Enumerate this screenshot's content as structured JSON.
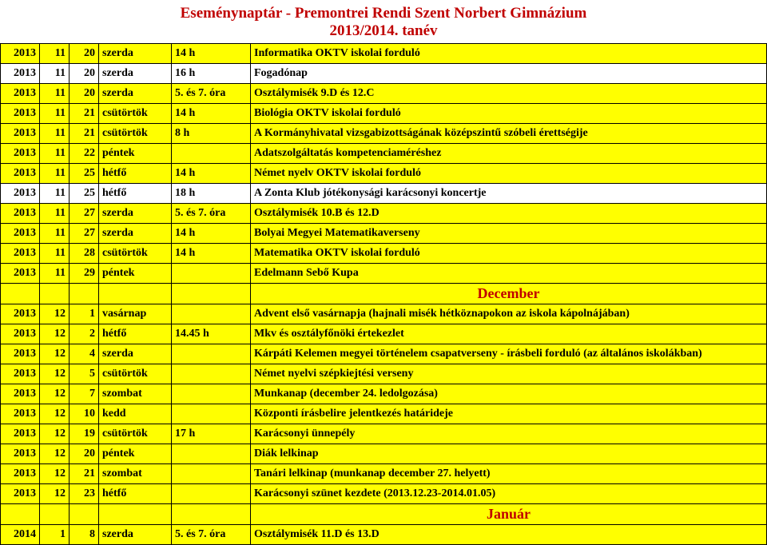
{
  "header": {
    "title": "Eseménynaptár - Premontrei Rendi Szent Norbert Gimnázium",
    "subtitle": "2013/2014. tanév"
  },
  "colors": {
    "title_color": "#c00000",
    "highlight_bg": "#ffff00",
    "normal_bg": "#ffffff",
    "border": "#000000"
  },
  "rows": [
    {
      "type": "data",
      "hl": true,
      "year": "2013",
      "month": "11",
      "day": "20",
      "dow": "szerda",
      "time": "14 h",
      "event": "Informatika OKTV iskolai forduló"
    },
    {
      "type": "data",
      "hl": false,
      "year": "2013",
      "month": "11",
      "day": "20",
      "dow": "szerda",
      "time": "16 h",
      "event": "Fogadónap"
    },
    {
      "type": "data",
      "hl": true,
      "year": "2013",
      "month": "11",
      "day": "20",
      "dow": "szerda",
      "time": "5. és 7. óra",
      "event": "Osztálymisék 9.D és 12.C"
    },
    {
      "type": "data",
      "hl": true,
      "year": "2013",
      "month": "11",
      "day": "21",
      "dow": "csütörtök",
      "time": "14 h",
      "event": "Biológia OKTV iskolai forduló"
    },
    {
      "type": "data",
      "hl": true,
      "year": "2013",
      "month": "11",
      "day": "21",
      "dow": "csütörtök",
      "time": "8 h",
      "event": "A Kormányhivatal vizsgabizottságának középszintű szóbeli érettségije"
    },
    {
      "type": "data",
      "hl": true,
      "year": "2013",
      "month": "11",
      "day": "22",
      "dow": "péntek",
      "time": "",
      "event": "Adatszolgáltatás kompetenciaméréshez"
    },
    {
      "type": "data",
      "hl": true,
      "year": "2013",
      "month": "11",
      "day": "25",
      "dow": "hétfő",
      "time": "14 h",
      "event": "Német nyelv OKTV iskolai forduló"
    },
    {
      "type": "data",
      "hl": false,
      "year": "2013",
      "month": "11",
      "day": "25",
      "dow": "hétfő",
      "time": "18 h",
      "event": "A Zonta Klub jótékonysági karácsonyi koncertje"
    },
    {
      "type": "data",
      "hl": true,
      "year": "2013",
      "month": "11",
      "day": "27",
      "dow": "szerda",
      "time": "5. és 7. óra",
      "event": "Osztálymisék 10.B és 12.D"
    },
    {
      "type": "data",
      "hl": true,
      "year": "2013",
      "month": "11",
      "day": "27",
      "dow": "szerda",
      "time": "14 h",
      "event": "Bolyai Megyei Matematikaverseny"
    },
    {
      "type": "data",
      "hl": true,
      "year": "2013",
      "month": "11",
      "day": "28",
      "dow": "csütörtök",
      "time": "14 h",
      "event": "Matematika OKTV iskolai forduló"
    },
    {
      "type": "data",
      "hl": true,
      "year": "2013",
      "month": "11",
      "day": "29",
      "dow": "péntek",
      "time": "",
      "event": "Edelmann Sebő Kupa"
    },
    {
      "type": "month",
      "label": "December"
    },
    {
      "type": "data",
      "hl": true,
      "year": "2013",
      "month": "12",
      "day": "1",
      "dow": "vasárnap",
      "time": "",
      "event": "Advent első vasárnapja (hajnali misék hétköznapokon az iskola kápolnájában)"
    },
    {
      "type": "data",
      "hl": true,
      "year": "2013",
      "month": "12",
      "day": "2",
      "dow": "hétfő",
      "time": "14.45 h",
      "event": "Mkv és osztályfőnöki értekezlet"
    },
    {
      "type": "data",
      "hl": true,
      "year": "2013",
      "month": "12",
      "day": "4",
      "dow": "szerda",
      "time": "",
      "event": "Kárpáti Kelemen megyei történelem csapatverseny - írásbeli forduló (az általános iskolákban)"
    },
    {
      "type": "data",
      "hl": true,
      "year": "2013",
      "month": "12",
      "day": "5",
      "dow": "csütörtök",
      "time": "",
      "event": "Német nyelvi szépkiejtési verseny"
    },
    {
      "type": "data",
      "hl": true,
      "year": "2013",
      "month": "12",
      "day": "7",
      "dow": "szombat",
      "time": "",
      "event": "Munkanap (december 24. ledolgozása)"
    },
    {
      "type": "data",
      "hl": true,
      "year": "2013",
      "month": "12",
      "day": "10",
      "dow": "kedd",
      "time": "",
      "event": "Központi írásbelire jelentkezés határideje"
    },
    {
      "type": "data",
      "hl": true,
      "year": "2013",
      "month": "12",
      "day": "19",
      "dow": "csütörtök",
      "time": "17 h",
      "event": "Karácsonyi ünnepély"
    },
    {
      "type": "data",
      "hl": true,
      "year": "2013",
      "month": "12",
      "day": "20",
      "dow": "péntek",
      "time": "",
      "event": "Diák lelkinap"
    },
    {
      "type": "data",
      "hl": true,
      "year": "2013",
      "month": "12",
      "day": "21",
      "dow": "szombat",
      "time": "",
      "event": "Tanári lelkinap (munkanap december 27. helyett)"
    },
    {
      "type": "data",
      "hl": true,
      "year": "2013",
      "month": "12",
      "day": "23",
      "dow": "hétfő",
      "time": "",
      "event": "Karácsonyi szünet kezdete (2013.12.23-2014.01.05)"
    },
    {
      "type": "month",
      "label": "Január"
    },
    {
      "type": "data",
      "hl": true,
      "year": "2014",
      "month": "1",
      "day": "8",
      "dow": "szerda",
      "time": "5. és 7. óra",
      "event": "Osztálymisék 11.D és 13.D"
    }
  ]
}
